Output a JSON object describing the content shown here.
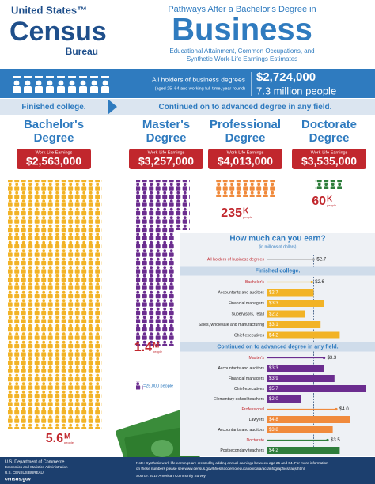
{
  "logo": {
    "line1": "United States™",
    "line2": "Census",
    "line3": "Bureau"
  },
  "header": {
    "kicker": "Pathways After a Bachelor's Degree in",
    "title": "Business",
    "subtitle_lines": [
      "Educational Attainment, Common Occupations, and",
      "Synthetic Work-Life Earnings Estimates"
    ]
  },
  "banner": {
    "label": "All holders of business degrees",
    "note": "(aged 25–64 and working full-time, year-round)",
    "earnings": "$2,724,000",
    "people": "7.3 million people"
  },
  "pathway": {
    "left": "Finished college.",
    "right": "Continued on to advanced degree in any field."
  },
  "degrees": [
    {
      "name_lines": [
        "Bachelor's",
        "Degree"
      ],
      "earnings_label": "Work-Life Earnings",
      "earnings": "$2,563,000",
      "count": "5.6",
      "unit": "M",
      "unit_note": "people",
      "color": "#f2b326"
    },
    {
      "name_lines": [
        "Master's",
        "Degree"
      ],
      "earnings_label": "Work-Life Earnings",
      "earnings": "$3,257,000",
      "count": "1.4",
      "unit": "M",
      "unit_note": "people",
      "color": "#6b2d8f"
    },
    {
      "name_lines": [
        "Professional",
        "Degree"
      ],
      "earnings_label": "Work-Life Earnings",
      "earnings": "$4,013,000",
      "count": "235",
      "unit": "K",
      "unit_note": "people",
      "color": "#f08a3c"
    },
    {
      "name_lines": [
        "Doctorate",
        "Degree"
      ],
      "earnings_label": "Work-Life Earnings",
      "earnings": "$3,535,000",
      "count": "60",
      "unit": "K",
      "unit_note": "people",
      "color": "#2e7d3b"
    }
  ],
  "legend": "=25,000 people",
  "chart": {
    "title": "How much can you earn?",
    "subtitle": "(in millions of dollars)",
    "rows": [
      {
        "label": "All holders of business degrees",
        "value": 2.7,
        "value_label": "$2.7",
        "color": "#b0b0b0",
        "header": true
      },
      {
        "section": "Finished college."
      },
      {
        "label": "Bachelor's",
        "value": 2.6,
        "value_label": "$2.6",
        "color": "#f2b326",
        "header": true
      },
      {
        "label": "Accountants and auditors",
        "value": 2.7,
        "value_label": "$2.7",
        "color": "#f2b326"
      },
      {
        "label": "Financial managers",
        "value": 3.3,
        "value_label": "$3.3",
        "color": "#f2b326"
      },
      {
        "label": "Supervisors, retail",
        "value": 2.2,
        "value_label": "$2.2",
        "color": "#f2b326"
      },
      {
        "label": "Sales, wholesale and manufacturing",
        "value": 3.1,
        "value_label": "$3.1",
        "color": "#f2b326"
      },
      {
        "label": "Chief executives",
        "value": 4.2,
        "value_label": "$4.2",
        "color": "#f2b326"
      },
      {
        "section": "Continued on to advanced degree in any field."
      },
      {
        "label": "Master's",
        "value": 3.3,
        "value_label": "$3.3",
        "color": "#6b2d8f",
        "header": true
      },
      {
        "label": "Accountants and auditors",
        "value": 3.3,
        "value_label": "$3.3",
        "color": "#6b2d8f"
      },
      {
        "label": "Financial managers",
        "value": 3.9,
        "value_label": "$3.9",
        "color": "#6b2d8f"
      },
      {
        "label": "Chief executives",
        "value": 5.7,
        "value_label": "$5.7",
        "color": "#6b2d8f"
      },
      {
        "label": "Elementary school teachers",
        "value": 2.0,
        "value_label": "$2.0",
        "color": "#6b2d8f"
      },
      {
        "label": "Professional",
        "value": 4.0,
        "value_label": "$4.0",
        "color": "#f08a3c",
        "header": true
      },
      {
        "label": "Lawyers",
        "value": 4.8,
        "value_label": "$4.8",
        "color": "#f08a3c"
      },
      {
        "label": "Accountants and auditors",
        "value": 3.8,
        "value_label": "$3.8",
        "color": "#f08a3c"
      },
      {
        "label": "Doctorate",
        "value": 3.5,
        "value_label": "$3.5",
        "color": "#2e7d3b",
        "header": true
      },
      {
        "label": "Postsecondary teachers",
        "value": 4.2,
        "value_label": "$4.2",
        "color": "#2e7d3b"
      }
    ]
  },
  "footer": {
    "agency_lines": [
      "U.S. Department of Commerce",
      "Economics and Statistics Administration",
      "U.S. CENSUS BUREAU"
    ],
    "site": "census.gov",
    "note_lines": [
      "Note: Synthetic work-life earnings are created by adding annual earnings between age 25 and 64. For more information",
      "on these numbers please see www.census.gov/hhes/socdemo/education/data/acs/infographics/faqs.html"
    ],
    "source": "Source: 2010 American Community Survey"
  }
}
